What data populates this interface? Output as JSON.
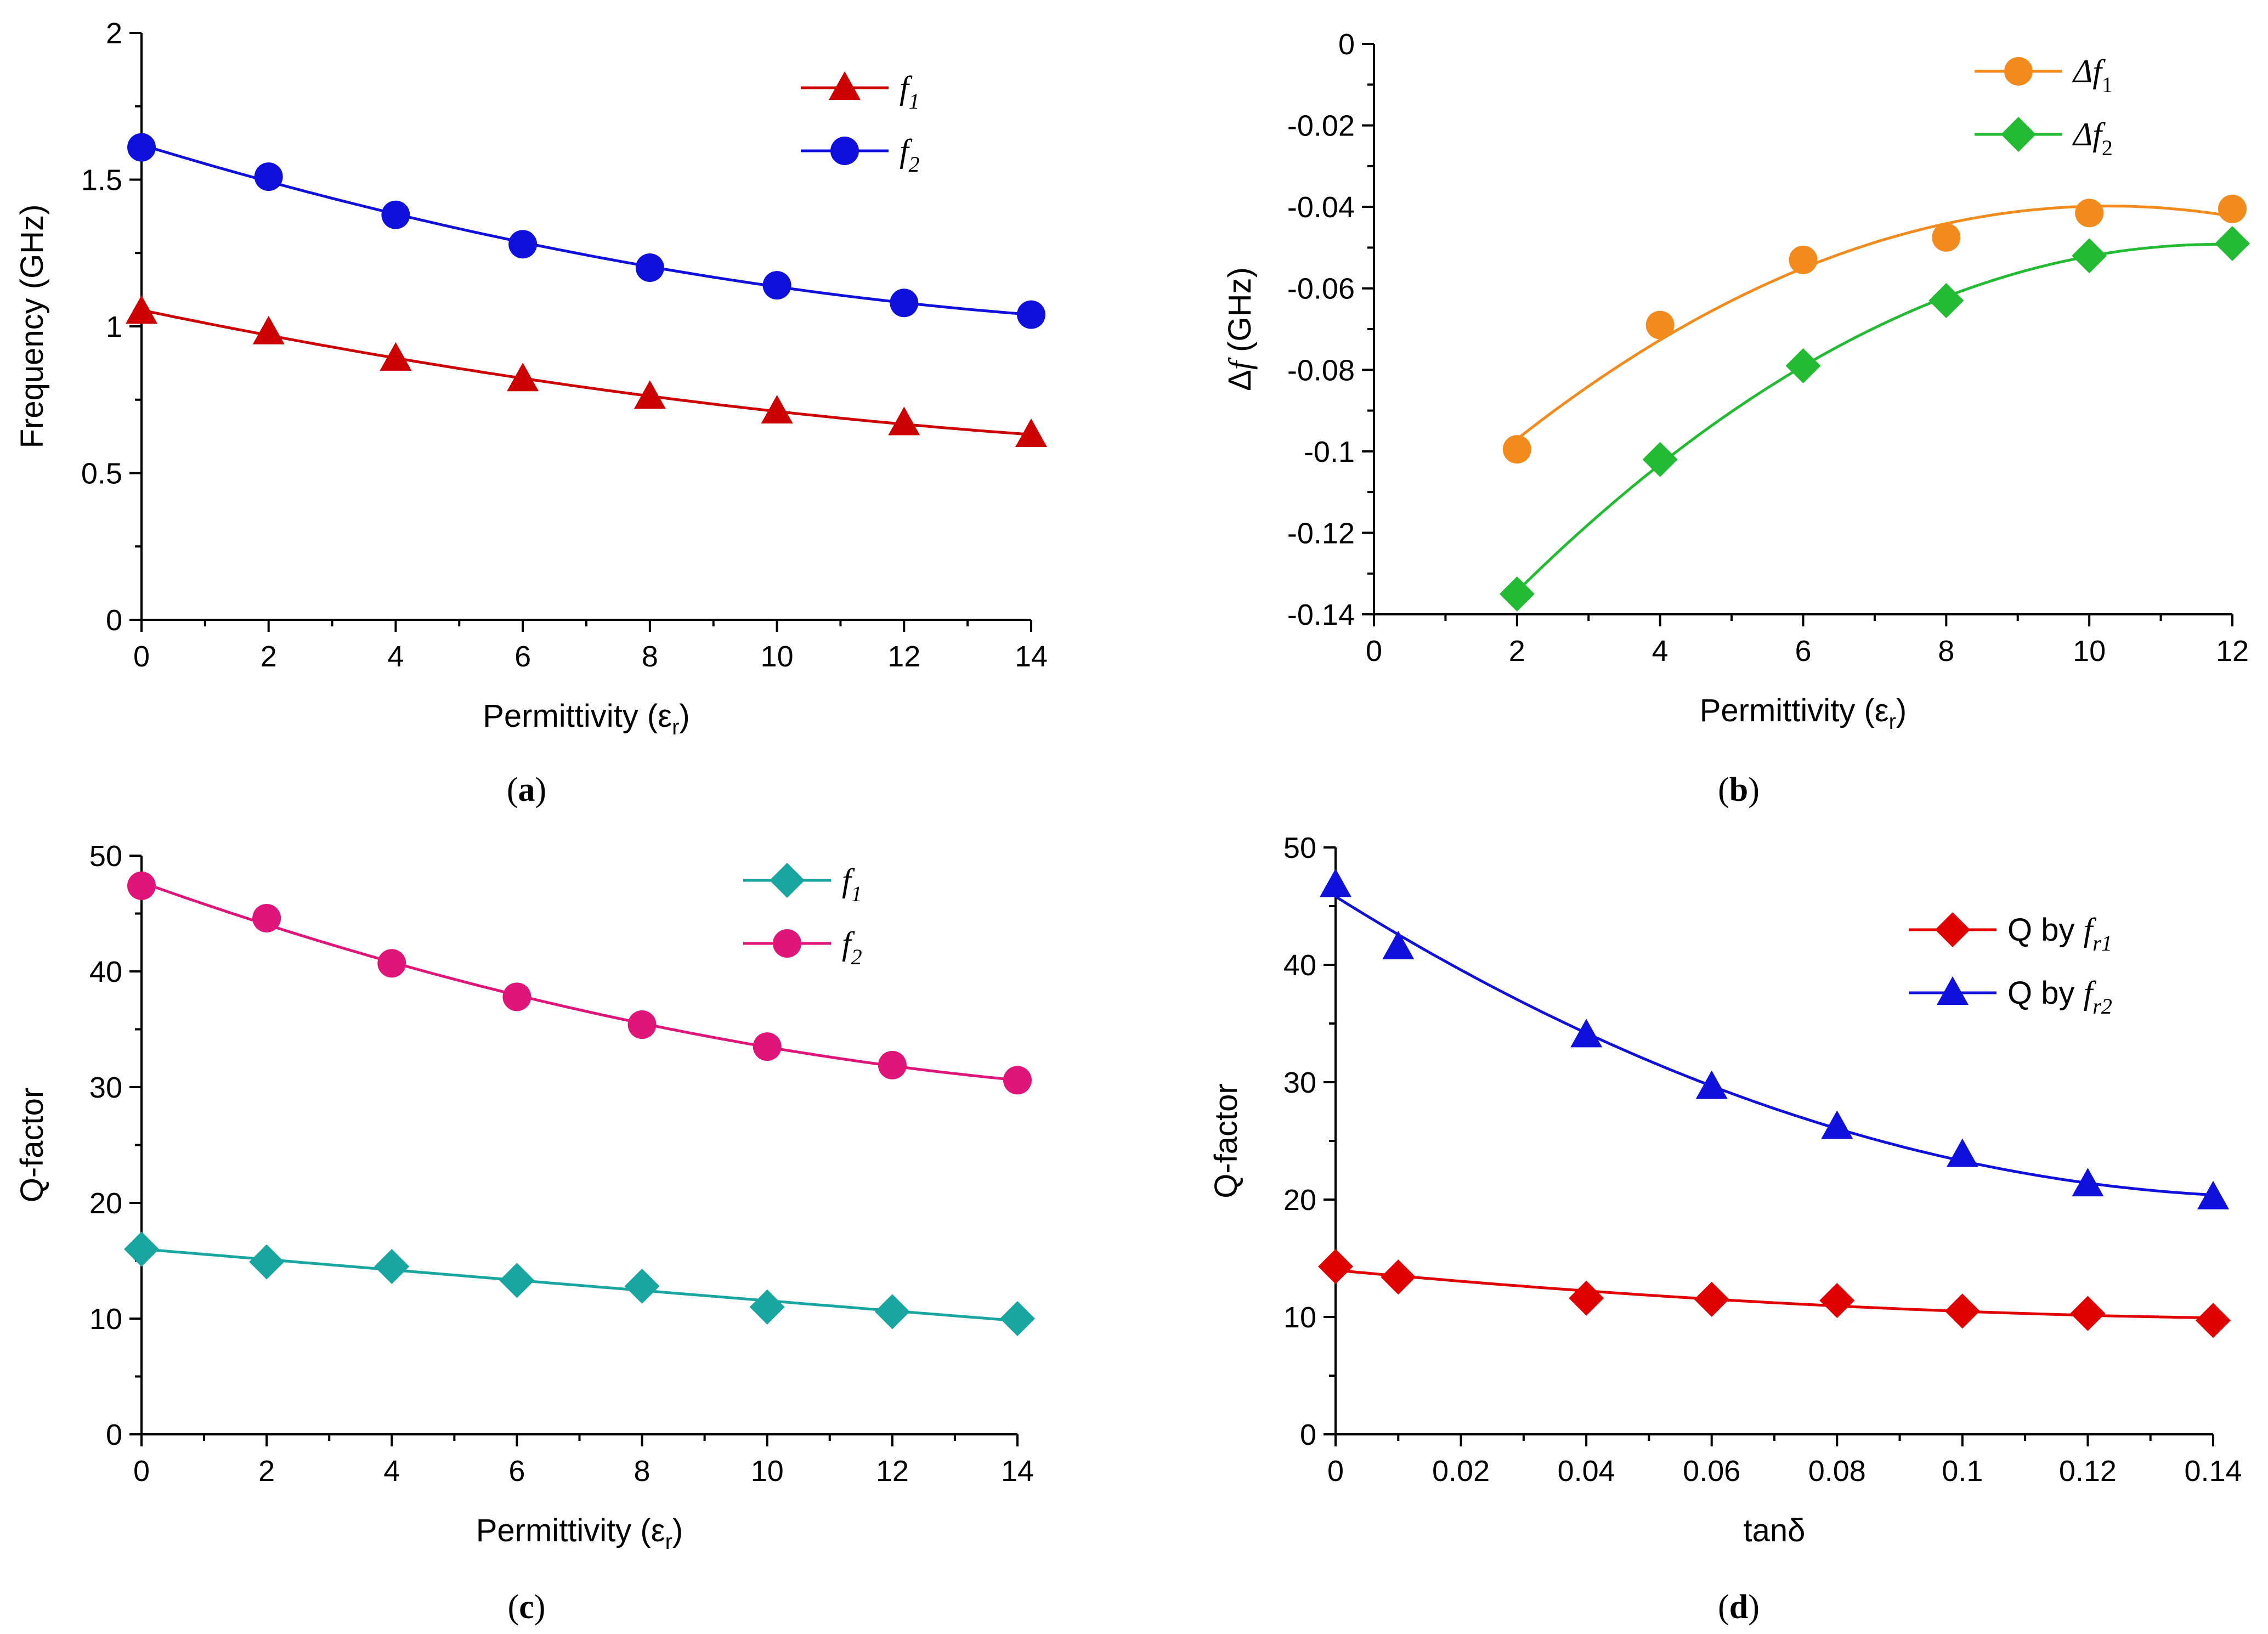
{
  "figure": {
    "captions": [
      "(a)",
      "(b)",
      "(c)",
      "(d)"
    ]
  },
  "chart_data": [
    {
      "id": "a",
      "type": "line",
      "caption": "(a)",
      "title": "",
      "xlabel": "Permittivity (εr)",
      "ylabel": "Frequency (GHz)",
      "xlim": [
        0,
        14
      ],
      "ylim": [
        0,
        2
      ],
      "xticks": [
        "0",
        "2",
        "4",
        "6",
        "8",
        "10",
        "12",
        "14"
      ],
      "yticks": [
        "0",
        "0.5",
        "1",
        "1.5",
        "2"
      ],
      "legend_position": "top-right",
      "x": [
        0,
        2,
        4,
        6,
        8,
        10,
        12,
        14
      ],
      "series": [
        {
          "name": "f1",
          "label_main": "f",
          "label_sub": "1",
          "color": "#cc0000",
          "marker": "triangle",
          "values": [
            1.05,
            0.98,
            0.89,
            0.82,
            0.76,
            0.71,
            0.67,
            0.63
          ]
        },
        {
          "name": "f2",
          "label_main": "f",
          "label_sub": "2",
          "color": "#1010dd",
          "marker": "circle",
          "values": [
            1.61,
            1.51,
            1.38,
            1.28,
            1.2,
            1.14,
            1.08,
            1.04
          ]
        }
      ]
    },
    {
      "id": "b",
      "type": "line",
      "caption": "(b)",
      "title": "",
      "xlabel": "Permittivity (εr)",
      "ylabel": "Δf (GHz)",
      "xlim": [
        0,
        12
      ],
      "ylim": [
        -0.14,
        0
      ],
      "xticks": [
        "0",
        "2",
        "4",
        "6",
        "8",
        "10",
        "12"
      ],
      "yticks": [
        "-0.14",
        "-0.12",
        "-0.1",
        "-0.08",
        "-0.06",
        "-0.04",
        "-0.02",
        "0"
      ],
      "legend_position": "top-right",
      "x": [
        2,
        4,
        6,
        8,
        10,
        12
      ],
      "series": [
        {
          "name": "Δf1",
          "label_main": "Δf",
          "label_sub": "1",
          "color": "#f28a1e",
          "marker": "circle",
          "values": [
            -0.0995,
            -0.069,
            -0.053,
            -0.0475,
            -0.0415,
            -0.0405
          ]
        },
        {
          "name": "Δf2",
          "label_main": "Δf",
          "label_sub": "2",
          "color": "#22bb33",
          "marker": "diamond",
          "values": [
            -0.135,
            -0.102,
            -0.079,
            -0.063,
            -0.052,
            -0.049
          ]
        }
      ]
    },
    {
      "id": "c",
      "type": "line",
      "caption": "(c)",
      "title": "",
      "xlabel": "Permittivity (εr)",
      "ylabel": "Q-factor",
      "xlim": [
        0,
        14
      ],
      "ylim": [
        0,
        50
      ],
      "xticks": [
        "0",
        "2",
        "4",
        "6",
        "8",
        "10",
        "12",
        "14"
      ],
      "yticks": [
        "0",
        "10",
        "20",
        "30",
        "40",
        "50"
      ],
      "legend_position": "top-right",
      "x": [
        0,
        2,
        4,
        6,
        8,
        10,
        12,
        14
      ],
      "series": [
        {
          "name": "f1",
          "label_main": "f",
          "label_sub": "1",
          "color": "#1aa6a0",
          "marker": "diamond",
          "values": [
            16.0,
            14.9,
            14.5,
            13.3,
            12.8,
            11.0,
            10.6,
            10.0
          ]
        },
        {
          "name": "f2",
          "label_main": "f",
          "label_sub": "2",
          "color": "#e0157a",
          "marker": "circle",
          "values": [
            47.4,
            44.6,
            40.7,
            37.8,
            35.4,
            33.5,
            31.9,
            30.6
          ]
        }
      ]
    },
    {
      "id": "d",
      "type": "line",
      "caption": "(d)",
      "title": "",
      "xlabel": "tanδ",
      "ylabel": "Q-factor",
      "xlim": [
        0,
        0.14
      ],
      "ylim": [
        0,
        50
      ],
      "xticks": [
        "0",
        "0.02",
        "0.04",
        "0.06",
        "0.08",
        "0.1",
        "0.12",
        "0.14"
      ],
      "yticks": [
        "0",
        "10",
        "20",
        "30",
        "40",
        "50"
      ],
      "legend_position": "top-right",
      "x": [
        0,
        0.01,
        0.04,
        0.06,
        0.08,
        0.1,
        0.12,
        0.14
      ],
      "series": [
        {
          "name": "Q by fr1",
          "label_prefix": "Q by ",
          "label_main": "f",
          "label_sub": "r1",
          "color": "#e00000",
          "marker": "diamond",
          "values": [
            14.3,
            13.4,
            11.6,
            11.5,
            11.4,
            10.5,
            10.3,
            9.7
          ]
        },
        {
          "name": "Q by fr2",
          "label_prefix": "Q by ",
          "label_main": "f",
          "label_sub": "r2",
          "color": "#1010dd",
          "marker": "triangle",
          "values": [
            46.8,
            41.5,
            34.0,
            29.6,
            26.2,
            23.8,
            21.3,
            20.2
          ]
        }
      ]
    }
  ]
}
